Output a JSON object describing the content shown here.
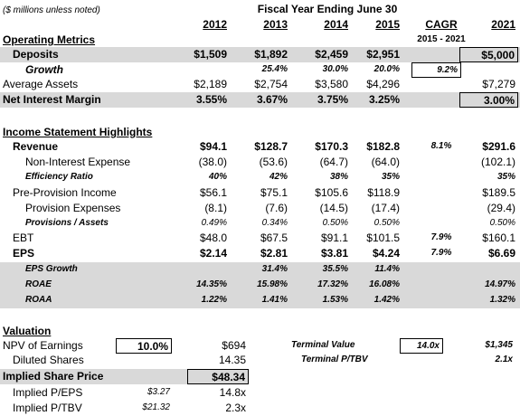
{
  "header": {
    "title": "Fiscal Year Ending June 30",
    "note": "($ millions unless noted)",
    "years": [
      "2012",
      "2013",
      "2014",
      "2015",
      "CAGR",
      "2021"
    ],
    "cagr_range": "2015 - 2021"
  },
  "sections": [
    {
      "title": "Operating Metrics",
      "rows": [
        {
          "label": "Deposits",
          "values": [
            "$1,509",
            "$1,892",
            "$2,459",
            "$2,951",
            null,
            "$5,000"
          ]
        },
        {
          "label": "Growth",
          "values": [
            null,
            "25.4%",
            "30.0%",
            "20.0%",
            "9.2%",
            null
          ]
        },
        {
          "label": "Average Assets",
          "values": [
            "$2,189",
            "$2,754",
            "$3,580",
            "$4,296",
            null,
            "$7,279"
          ]
        },
        {
          "label": "Net Interest Margin",
          "values": [
            "3.55%",
            "3.67%",
            "3.75%",
            "3.25%",
            null,
            "3.00%"
          ]
        }
      ]
    },
    {
      "title": "Income Statement Highlights",
      "rows": [
        {
          "label": "Revenue",
          "values": [
            "$94.1",
            "$128.7",
            "$170.3",
            "$182.8",
            "8.1%",
            "$291.6"
          ]
        },
        {
          "label": "Non-Interest Expense",
          "values": [
            "(38.0)",
            "(53.6)",
            "(64.7)",
            "(64.0)",
            null,
            "(102.1)"
          ]
        },
        {
          "label": "Efficiency Ratio",
          "values": [
            "40%",
            "42%",
            "38%",
            "35%",
            null,
            "35%"
          ]
        },
        {
          "label": "Pre-Provision Income",
          "values": [
            "$56.1",
            "$75.1",
            "$105.6",
            "$118.9",
            null,
            "$189.5"
          ]
        },
        {
          "label": "Provision Expenses",
          "values": [
            "(8.1)",
            "(7.6)",
            "(14.5)",
            "(17.4)",
            null,
            "(29.4)"
          ]
        },
        {
          "label": "Provisions / Assets",
          "values": [
            "0.49%",
            "0.34%",
            "0.50%",
            "0.50%",
            null,
            "0.50%"
          ]
        },
        {
          "label": "EBT",
          "values": [
            "$48.0",
            "$67.5",
            "$91.1",
            "$101.5",
            "7.9%",
            "$160.1"
          ]
        },
        {
          "label": "EPS",
          "values": [
            "$2.14",
            "$2.81",
            "$3.81",
            "$4.24",
            "7.9%",
            "$6.69"
          ]
        },
        {
          "label": "EPS Growth",
          "values": [
            null,
            "31.4%",
            "35.5%",
            "11.4%",
            null,
            null
          ]
        },
        {
          "label": "ROAE",
          "values": [
            "14.35%",
            "15.98%",
            "17.32%",
            "16.08%",
            null,
            "14.97%"
          ]
        },
        {
          "label": "ROAA",
          "values": [
            "1.22%",
            "1.41%",
            "1.53%",
            "1.42%",
            null,
            "1.32%"
          ]
        }
      ]
    }
  ],
  "valuation": {
    "title": "Valuation",
    "rows": [
      {
        "label": "NPV of Earnings",
        "input": "10.0%",
        "value": "$694",
        "side_label": "Terminal Value",
        "side_input": "14.0x",
        "side_value": "$1,345"
      },
      {
        "label": "Diluted Shares",
        "value": "14.35",
        "side_label": "Terminal P/TBV",
        "side_value": "2.1x"
      },
      {
        "label": "Implied Share Price",
        "value": "$48.34"
      },
      {
        "label": "Implied P/EPS",
        "input": "$3.27",
        "value": "14.8x"
      },
      {
        "label": "Implied P/TBV",
        "input": "$21.32",
        "value": "2.3x"
      }
    ]
  }
}
